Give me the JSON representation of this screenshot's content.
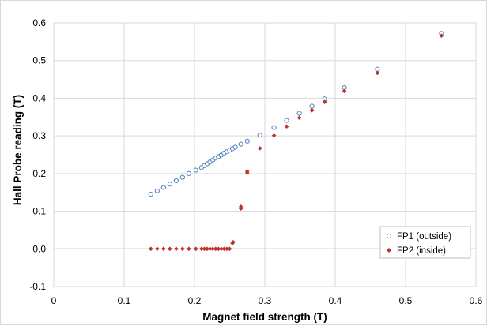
{
  "chart_data": {
    "type": "scatter",
    "title": "",
    "xlabel": "Magnet field strength (T)",
    "ylabel": "Hall Probe reading (T)",
    "xlim": [
      0,
      0.6
    ],
    "ylim": [
      -0.1,
      0.6
    ],
    "x_ticks": [
      0,
      0.1,
      0.2,
      0.3,
      0.4,
      0.5,
      0.6
    ],
    "x_tick_labels": [
      "0",
      "0.1",
      "0.2",
      "0.3",
      "0.4",
      "0.5",
      "0.6"
    ],
    "y_ticks": [
      -0.1,
      0.0,
      0.1,
      0.2,
      0.3,
      0.4,
      0.5,
      0.6
    ],
    "y_tick_labels": [
      "-0.1",
      "0.0",
      "0.1",
      "0.2",
      "0.3",
      "0.4",
      "0.5",
      "0.6"
    ],
    "grid": true,
    "legend_position": "bottom-right",
    "series": [
      {
        "name": "FP1 (outside)",
        "color": "#4f81bd",
        "marker": "hollow-circle",
        "x": [
          0.138,
          0.147,
          0.156,
          0.165,
          0.174,
          0.183,
          0.192,
          0.202,
          0.21,
          0.214,
          0.218,
          0.222,
          0.226,
          0.23,
          0.234,
          0.238,
          0.242,
          0.246,
          0.25,
          0.254,
          0.258,
          0.266,
          0.275,
          0.293,
          0.313,
          0.331,
          0.349,
          0.367,
          0.385,
          0.413,
          0.46,
          0.551
        ],
        "y": [
          0.145,
          0.154,
          0.163,
          0.172,
          0.181,
          0.19,
          0.2,
          0.209,
          0.216,
          0.221,
          0.226,
          0.231,
          0.236,
          0.241,
          0.245,
          0.249,
          0.254,
          0.258,
          0.262,
          0.266,
          0.27,
          0.278,
          0.286,
          0.302,
          0.322,
          0.341,
          0.36,
          0.379,
          0.398,
          0.428,
          0.477,
          0.572
        ]
      },
      {
        "name": "FP2 (inside)",
        "color": "#c0312b",
        "marker": "filled-diamond",
        "x": [
          0.138,
          0.147,
          0.156,
          0.165,
          0.174,
          0.183,
          0.192,
          0.202,
          0.21,
          0.214,
          0.218,
          0.222,
          0.226,
          0.23,
          0.234,
          0.238,
          0.242,
          0.246,
          0.25,
          0.254,
          0.255,
          0.266,
          0.266,
          0.275,
          0.275,
          0.293,
          0.313,
          0.331,
          0.349,
          0.367,
          0.385,
          0.413,
          0.46,
          0.551
        ],
        "y": [
          0.0,
          0.0,
          0.0,
          0.0,
          0.0,
          0.0,
          0.0,
          0.0,
          0.0,
          0.0,
          0.0,
          0.0,
          0.0,
          0.0,
          0.0,
          0.0,
          0.0,
          0.0,
          0.0,
          0.015,
          0.018,
          0.107,
          0.112,
          0.202,
          0.206,
          0.267,
          0.301,
          0.325,
          0.348,
          0.368,
          0.39,
          0.419,
          0.467,
          0.566
        ]
      }
    ]
  }
}
